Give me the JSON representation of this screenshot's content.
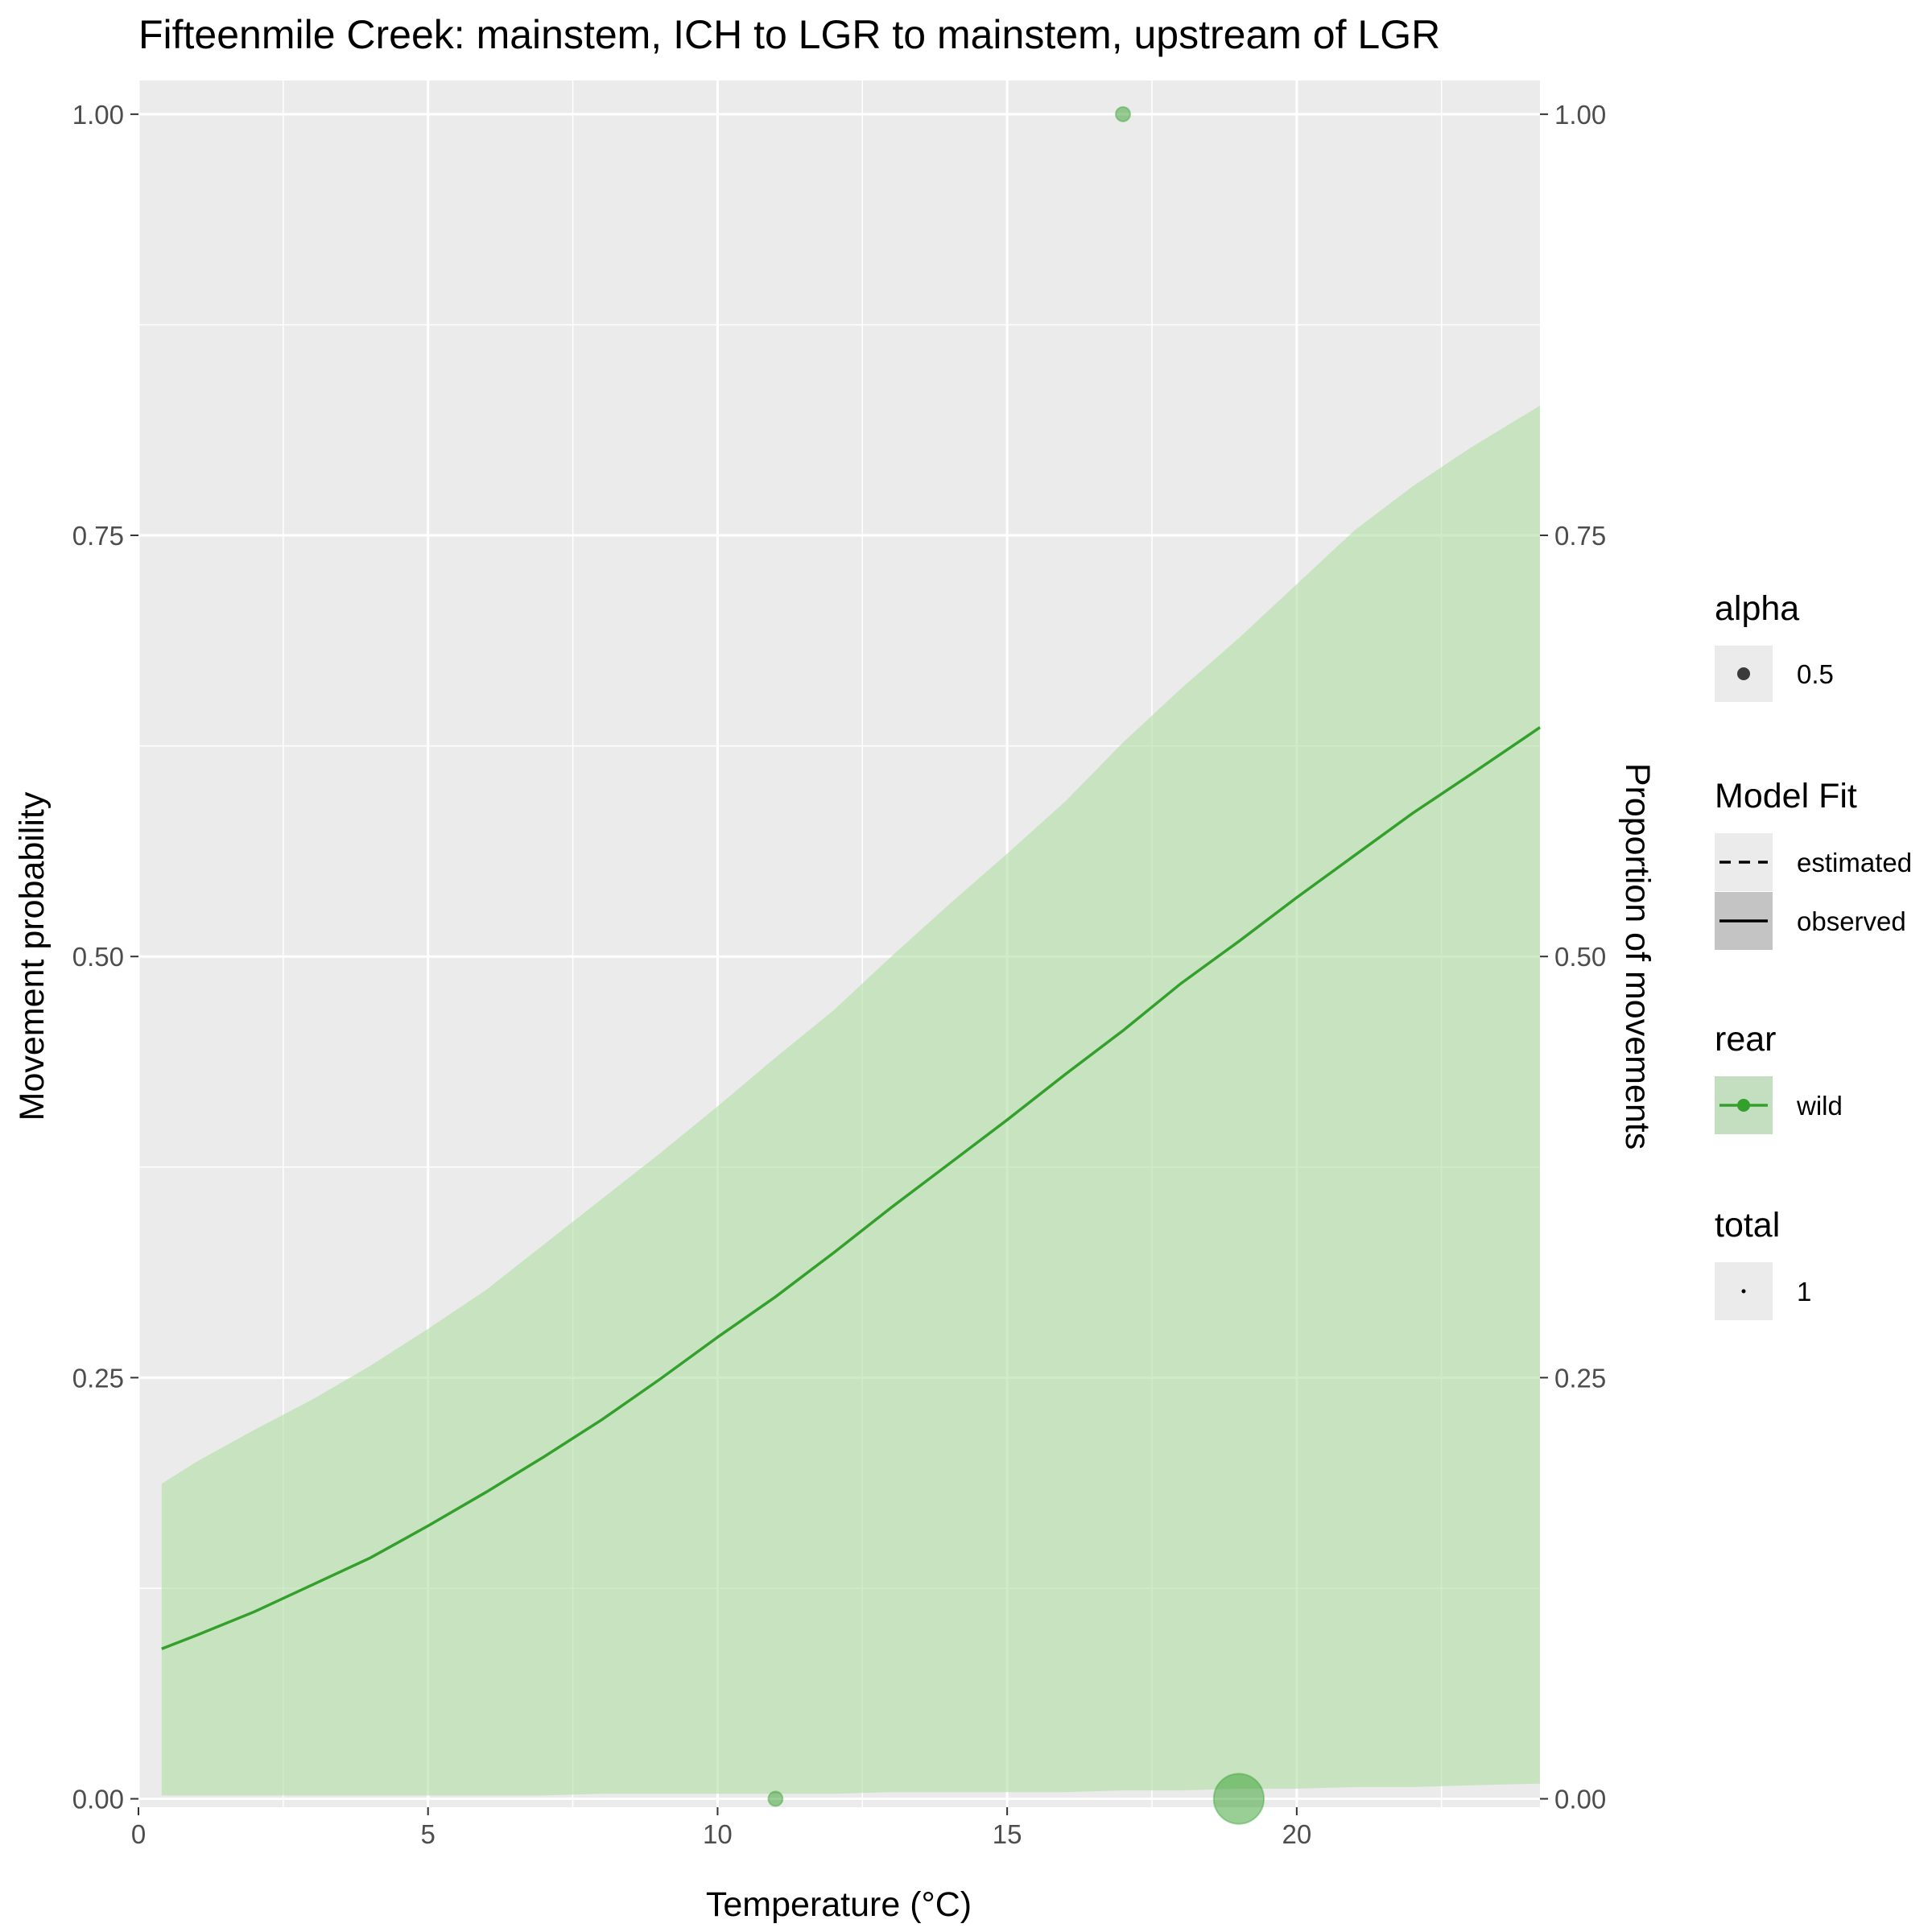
{
  "chart_data": {
    "type": "line",
    "title": "Fifteenmile Creek: mainstem, ICH to LGR to mainstem, upstream of LGR",
    "xlabel": "Temperature (°C)",
    "ylabel": "Movement probability",
    "y2label": "Proportion of movements",
    "xlim": [
      0,
      24.2
    ],
    "ylim": [
      -0.005,
      1.02
    ],
    "x_ticks": [
      0,
      5,
      10,
      15,
      20
    ],
    "x_tick_labels": [
      "0",
      "5",
      "10",
      "15",
      "20"
    ],
    "y_ticks": [
      0,
      0.25,
      0.5,
      0.75,
      1
    ],
    "y_tick_labels": [
      "0.00",
      "0.25",
      "0.50",
      "0.75",
      "1.00"
    ],
    "y2_tick_labels": [
      "0.00",
      "0.25",
      "0.50",
      "0.75",
      "1.00"
    ],
    "grid": true,
    "legend_position": "right",
    "colors": {
      "series": "#33a02c",
      "ribbon": "#b2dfa6",
      "panel": "#ebebeb",
      "grid": "#ffffff"
    },
    "series": [
      {
        "name": "wild",
        "line": "observed",
        "x": [
          0.4,
          1.0,
          2.0,
          3.0,
          4.0,
          5.0,
          6.0,
          7.0,
          8.0,
          9.0,
          10.0,
          11.0,
          12.0,
          13.0,
          14.0,
          15.0,
          16.0,
          17.0,
          18.0,
          19.0,
          20.0,
          21.0,
          22.0,
          23.0,
          24.2
        ],
        "y": [
          0.089,
          0.097,
          0.111,
          0.127,
          0.143,
          0.162,
          0.182,
          0.203,
          0.225,
          0.249,
          0.274,
          0.298,
          0.324,
          0.351,
          0.377,
          0.403,
          0.43,
          0.456,
          0.484,
          0.509,
          0.535,
          0.56,
          0.585,
          0.608,
          0.636
        ],
        "lower": [
          0.002,
          0.002,
          0.002,
          0.002,
          0.002,
          0.002,
          0.002,
          0.002,
          0.003,
          0.003,
          0.003,
          0.003,
          0.003,
          0.004,
          0.004,
          0.004,
          0.004,
          0.005,
          0.005,
          0.006,
          0.006,
          0.007,
          0.007,
          0.008,
          0.009
        ],
        "upper": [
          0.187,
          0.2,
          0.219,
          0.237,
          0.257,
          0.279,
          0.302,
          0.329,
          0.356,
          0.383,
          0.411,
          0.44,
          0.468,
          0.5,
          0.531,
          0.561,
          0.592,
          0.627,
          0.659,
          0.689,
          0.721,
          0.753,
          0.779,
          0.802,
          0.827
        ]
      }
    ],
    "points": [
      {
        "x": 17.0,
        "y": 1.0,
        "total": 1
      },
      {
        "x": 11.0,
        "y": 0.0,
        "total": 1
      },
      {
        "x": 19.0,
        "y": 0.0,
        "total": 12
      }
    ]
  },
  "legend": {
    "alpha": {
      "title": "alpha",
      "items": [
        "0.5"
      ]
    },
    "model_fit": {
      "title": "Model Fit",
      "items": [
        "estimated",
        "observed"
      ]
    },
    "rear": {
      "title": "rear",
      "items": [
        "wild"
      ]
    },
    "total": {
      "title": "total",
      "items": [
        "1"
      ]
    }
  }
}
